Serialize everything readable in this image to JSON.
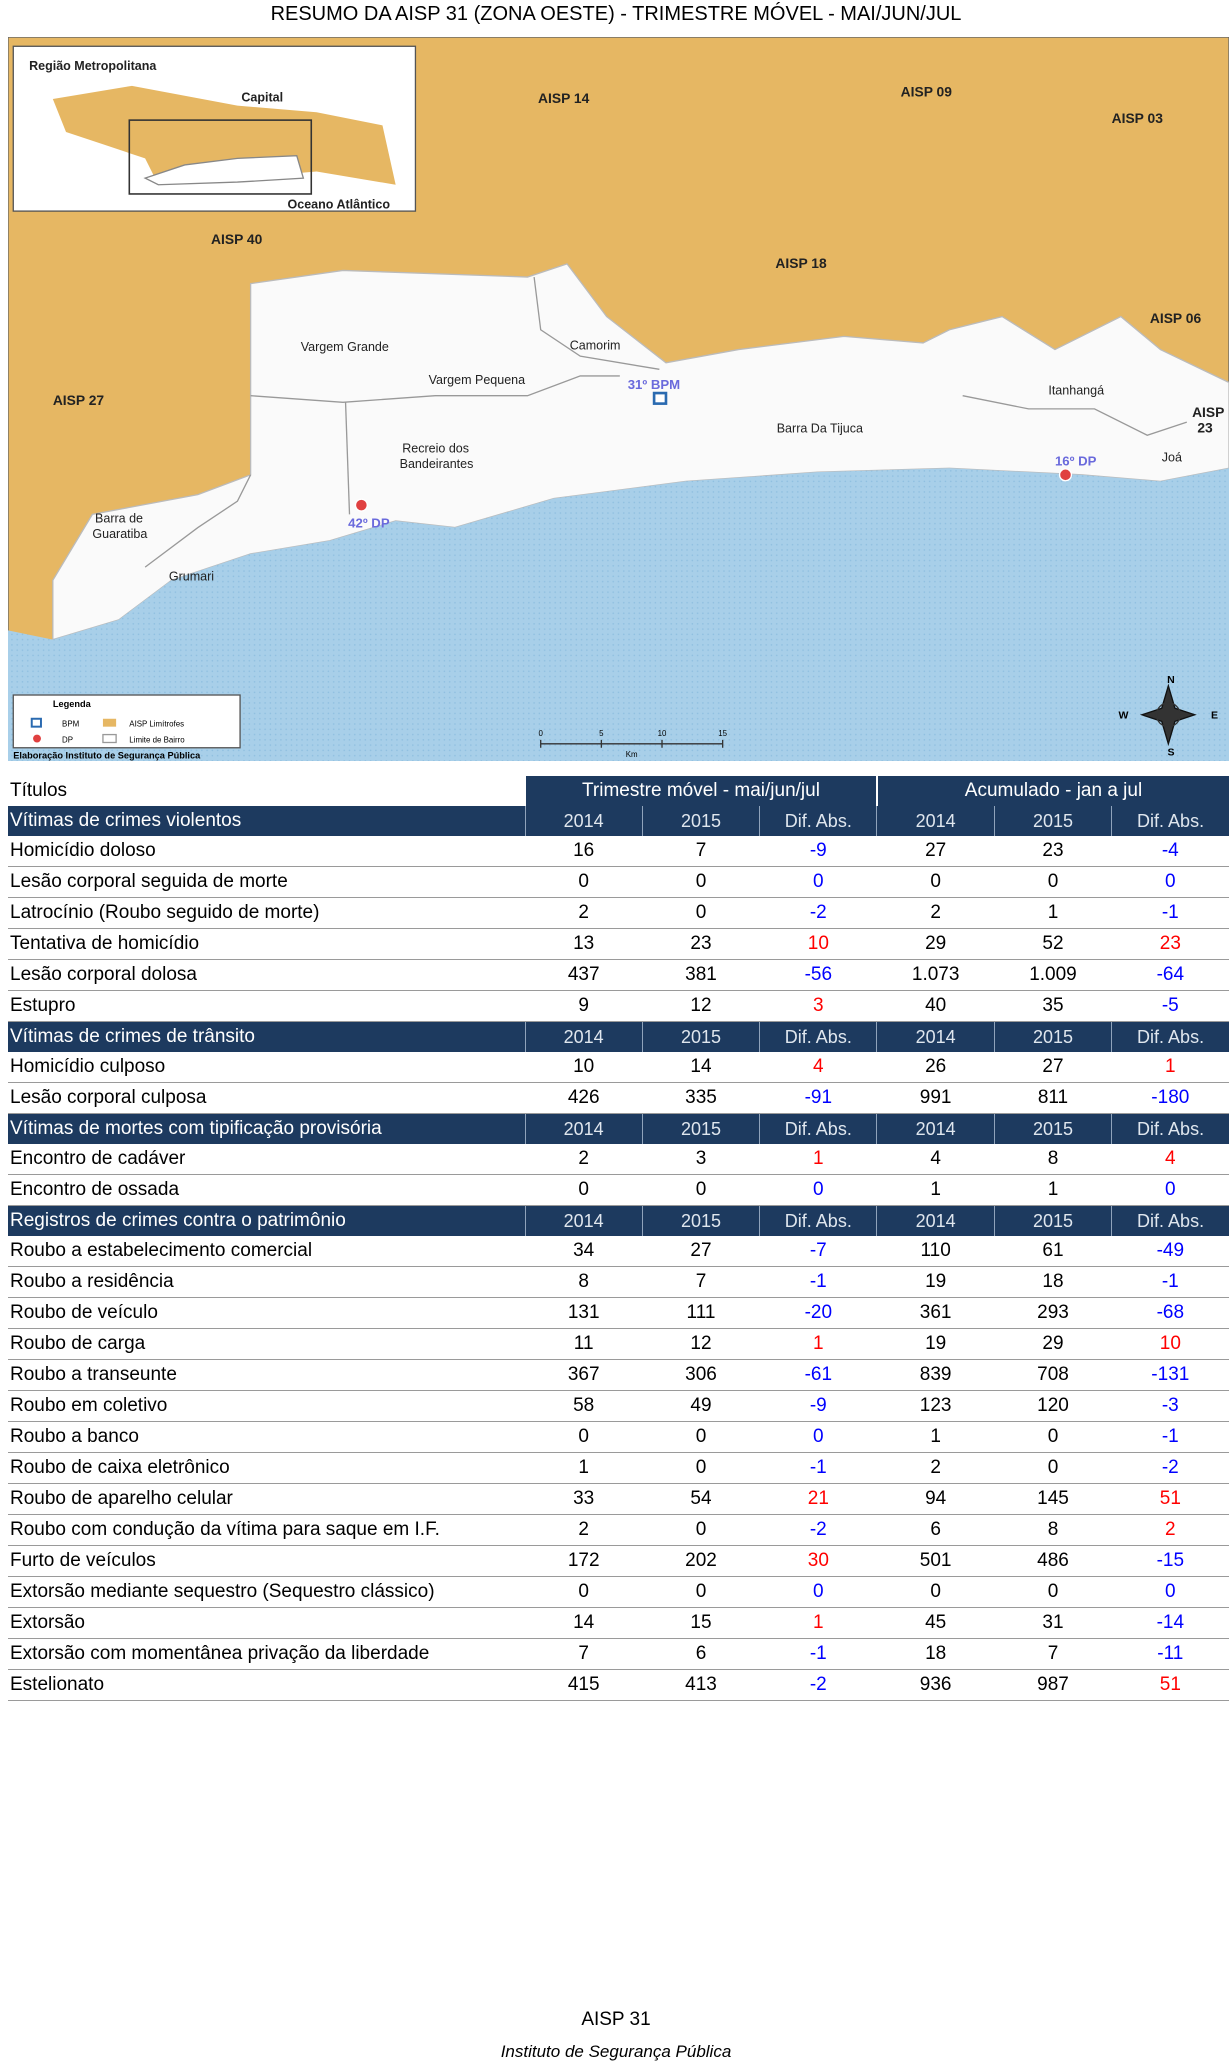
{
  "header": {
    "title": "RESUMO DA AISP 31 (ZONA OESTE) - TRIMESTRE MÓVEL - MAI/JUN/JUL"
  },
  "map": {
    "inset": {
      "region": "Região Metropolitana",
      "capital": "Capital",
      "ocean": "Oceano Atlântico"
    },
    "areas": [
      "AISP 14",
      "AISP 09",
      "AISP 03",
      "AISP 40",
      "AISP 18",
      "AISP 06",
      "AISP 27",
      "AISP",
      "23"
    ],
    "places": [
      "Vargem Grande",
      "Camorim",
      "Vargem Pequena",
      "Itanhangá",
      "Barra Da Tijuca",
      "Recreio dos",
      "Bandeirantes",
      "Joá",
      "Barra de",
      "Guaratiba",
      "Grumari"
    ],
    "stations": [
      "31º BPM",
      "16º DP",
      "42º DP"
    ],
    "legend": {
      "title": "Legenda",
      "items": [
        "BPM",
        "AISP Limítrofes",
        "DP",
        "Limite de Bairro"
      ],
      "credit": "Elaboração Instituto de Segurança Pública"
    },
    "scale": {
      "ticks": [
        "0",
        "5",
        "10",
        "15"
      ],
      "unit": "Km"
    },
    "compass": [
      "N",
      "S",
      "E",
      "W"
    ]
  },
  "table": {
    "corner": "Títulos",
    "groups": [
      "Trimestre móvel - mai/jun/jul",
      "Acumulado - jan a jul"
    ],
    "sections": [
      {
        "title": "Vítimas de crimes violentos",
        "columns": [
          "2014",
          "2015",
          "Dif. Abs.",
          "2014",
          "2015",
          "Dif. Abs."
        ],
        "rows": [
          {
            "label": "Homicídio doloso",
            "values": [
              "16",
              "7",
              "-9",
              "27",
              "23",
              "-4"
            ]
          },
          {
            "label": "Lesão corporal seguida de morte",
            "values": [
              "0",
              "0",
              "0",
              "0",
              "0",
              "0"
            ]
          },
          {
            "label": "Latrocínio (Roubo seguido de morte)",
            "values": [
              "2",
              "0",
              "-2",
              "2",
              "1",
              "-1"
            ]
          },
          {
            "label": "Tentativa de homicídio",
            "values": [
              "13",
              "23",
              "10",
              "29",
              "52",
              "23"
            ]
          },
          {
            "label": "Lesão corporal dolosa",
            "values": [
              "437",
              "381",
              "-56",
              "1.073",
              "1.009",
              "-64"
            ]
          },
          {
            "label": "Estupro",
            "values": [
              "9",
              "12",
              "3",
              "40",
              "35",
              "-5"
            ]
          }
        ]
      },
      {
        "title": "Vítimas de crimes de trânsito",
        "columns": [
          "2014",
          "2015",
          "Dif. Abs.",
          "2014",
          "2015",
          "Dif. Abs."
        ],
        "rows": [
          {
            "label": "Homicídio culposo",
            "values": [
              "10",
              "14",
              "4",
              "26",
              "27",
              "1"
            ]
          },
          {
            "label": "Lesão corporal culposa",
            "values": [
              "426",
              "335",
              "-91",
              "991",
              "811",
              "-180"
            ]
          }
        ]
      },
      {
        "title": "Vítimas de mortes com tipificação provisória",
        "columns": [
          "2014",
          "2015",
          "Dif. Abs.",
          "2014",
          "2015",
          "Dif. Abs."
        ],
        "rows": [
          {
            "label": "Encontro de cadáver",
            "values": [
              "2",
              "3",
              "1",
              "4",
              "8",
              "4"
            ]
          },
          {
            "label": "Encontro de ossada",
            "values": [
              "0",
              "0",
              "0",
              "1",
              "1",
              "0"
            ]
          }
        ]
      },
      {
        "title": "Registros de crimes contra o patrimônio",
        "columns": [
          "2014",
          "2015",
          "Dif. Abs.",
          "2014",
          "2015",
          "Dif. Abs."
        ],
        "rows": [
          {
            "label": "Roubo a estabelecimento comercial",
            "values": [
              "34",
              "27",
              "-7",
              "110",
              "61",
              "-49"
            ]
          },
          {
            "label": "Roubo a residência",
            "values": [
              "8",
              "7",
              "-1",
              "19",
              "18",
              "-1"
            ]
          },
          {
            "label": "Roubo de veículo",
            "values": [
              "131",
              "111",
              "-20",
              "361",
              "293",
              "-68"
            ]
          },
          {
            "label": "Roubo de carga",
            "values": [
              "11",
              "12",
              "1",
              "19",
              "29",
              "10"
            ]
          },
          {
            "label": "Roubo a transeunte",
            "values": [
              "367",
              "306",
              "-61",
              "839",
              "708",
              "-131"
            ]
          },
          {
            "label": "Roubo em coletivo",
            "values": [
              "58",
              "49",
              "-9",
              "123",
              "120",
              "-3"
            ]
          },
          {
            "label": "Roubo a banco",
            "values": [
              "0",
              "0",
              "0",
              "1",
              "0",
              "-1"
            ]
          },
          {
            "label": "Roubo de caixa eletrônico",
            "values": [
              "1",
              "0",
              "-1",
              "2",
              "0",
              "-2"
            ]
          },
          {
            "label": "Roubo de aparelho celular",
            "values": [
              "33",
              "54",
              "21",
              "94",
              "145",
              "51"
            ]
          },
          {
            "label": "Roubo com condução da vítima para saque em I.F.",
            "values": [
              "2",
              "0",
              "-2",
              "6",
              "8",
              "2"
            ]
          },
          {
            "label": "Furto de veículos",
            "values": [
              "172",
              "202",
              "30",
              "501",
              "486",
              "-15"
            ]
          },
          {
            "label": "Extorsão mediante sequestro (Sequestro clássico)",
            "values": [
              "0",
              "0",
              "0",
              "0",
              "0",
              "0"
            ]
          },
          {
            "label": "Extorsão",
            "values": [
              "14",
              "15",
              "1",
              "45",
              "31",
              "-14"
            ]
          },
          {
            "label": "Extorsão com momentânea privação da liberdade",
            "values": [
              "7",
              "6",
              "-1",
              "18",
              "7",
              "-11"
            ]
          },
          {
            "label": "Estelionato",
            "values": [
              "415",
              "413",
              "-2",
              "936",
              "987",
              "51"
            ]
          }
        ]
      }
    ]
  },
  "footer": {
    "code": "AISP 31",
    "institute": "Instituto de Segurança Pública"
  }
}
